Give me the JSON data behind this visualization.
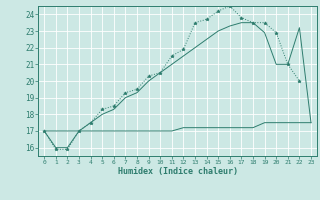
{
  "xlabel": "Humidex (Indice chaleur)",
  "bg_color": "#cce8e4",
  "line_color": "#2e7d6e",
  "grid_color": "#ffffff",
  "xlim": [
    -0.5,
    23.5
  ],
  "ylim": [
    15.5,
    24.5
  ],
  "yticks": [
    16,
    17,
    18,
    19,
    20,
    21,
    22,
    23,
    24
  ],
  "xticks": [
    0,
    1,
    2,
    3,
    4,
    5,
    6,
    7,
    8,
    9,
    10,
    11,
    12,
    13,
    14,
    15,
    16,
    17,
    18,
    19,
    20,
    21,
    22,
    23
  ],
  "curve1_x": [
    0,
    1,
    2,
    3,
    4,
    5,
    6,
    7,
    8,
    9,
    10,
    11,
    12,
    13,
    14,
    15,
    16,
    17,
    18,
    19,
    20,
    21,
    22
  ],
  "curve1_y": [
    17.0,
    15.9,
    15.9,
    17.0,
    17.5,
    18.3,
    18.5,
    19.3,
    19.5,
    20.3,
    20.5,
    21.5,
    21.9,
    23.5,
    23.7,
    24.2,
    24.5,
    23.8,
    23.5,
    23.5,
    22.9,
    21.0,
    20.0
  ],
  "curve2_x": [
    0,
    1,
    2,
    3,
    4,
    5,
    6,
    7,
    8,
    9,
    10,
    11,
    12,
    13,
    14,
    15,
    16,
    17,
    18,
    19,
    20,
    21,
    22,
    23
  ],
  "curve2_y": [
    17.0,
    16.0,
    16.0,
    17.0,
    17.5,
    18.0,
    18.3,
    19.0,
    19.3,
    20.0,
    20.5,
    21.0,
    21.5,
    22.0,
    22.5,
    23.0,
    23.3,
    23.5,
    23.5,
    22.9,
    21.0,
    21.0,
    23.2,
    17.5
  ],
  "curve3_x": [
    0,
    1,
    2,
    3,
    4,
    5,
    6,
    7,
    8,
    9,
    10,
    11,
    12,
    13,
    14,
    15,
    16,
    17,
    18,
    19,
    20,
    21,
    22,
    23
  ],
  "curve3_y": [
    17.0,
    17.0,
    17.0,
    17.0,
    17.0,
    17.0,
    17.0,
    17.0,
    17.0,
    17.0,
    17.0,
    17.0,
    17.2,
    17.2,
    17.2,
    17.2,
    17.2,
    17.2,
    17.2,
    17.5,
    17.5,
    17.5,
    17.5,
    17.5
  ]
}
